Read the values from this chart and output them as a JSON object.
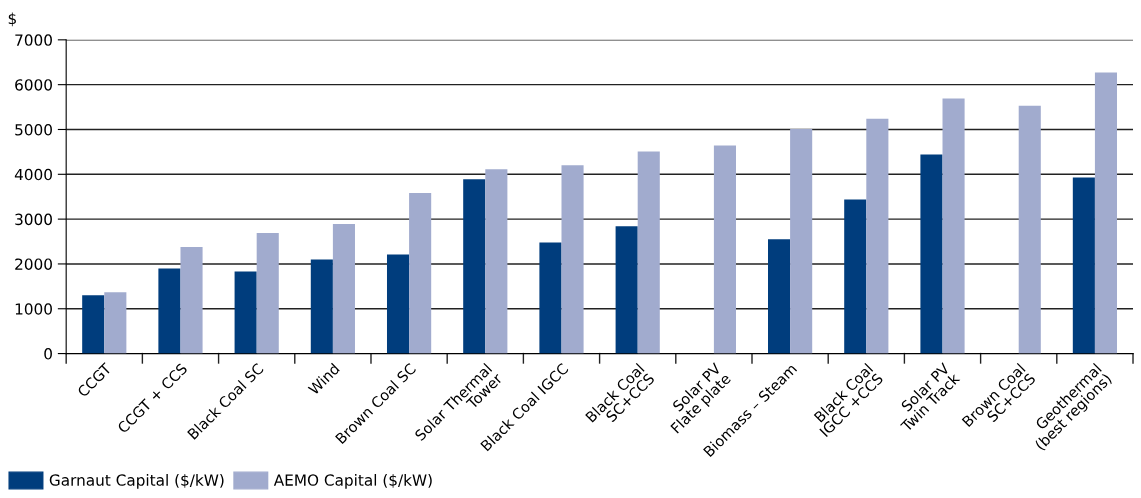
{
  "chart_data": {
    "type": "bar",
    "ylabel": "$",
    "categories": [
      "CCGT",
      "CCGT + CCS",
      "Black Coal SC",
      "Wind",
      "Brown Coal SC",
      "Solar Thermal\nTower",
      "Black Coal IGCC",
      "Black Coal\nSC+CCS",
      "Solar PV\nFlate plate",
      "Biomass – Steam",
      "Black Coal\nIGCC +CCS",
      "Solar PV\nTwin Track",
      "Brown Coal\nSC+CCS",
      "Geothermal\n(best regions)"
    ],
    "series": [
      {
        "name": "Garnaut Capital ($/kW)",
        "color": "#003d7d",
        "values": [
          1300,
          1900,
          1830,
          2100,
          2210,
          3890,
          2480,
          2840,
          null,
          2550,
          3440,
          4440,
          null,
          3930
        ]
      },
      {
        "name": "AEMO Capital ($/kW)",
        "color": "#a1abce",
        "values": [
          1370,
          2380,
          2690,
          2890,
          3580,
          4110,
          4200,
          4510,
          4640,
          5010,
          5240,
          5690,
          5530,
          6270
        ]
      }
    ],
    "ylim": [
      0,
      7000
    ],
    "yticks": [
      0,
      1000,
      2000,
      3000,
      4000,
      5000,
      6000,
      7000
    ],
    "grid": "y",
    "legend": "bottom left"
  }
}
